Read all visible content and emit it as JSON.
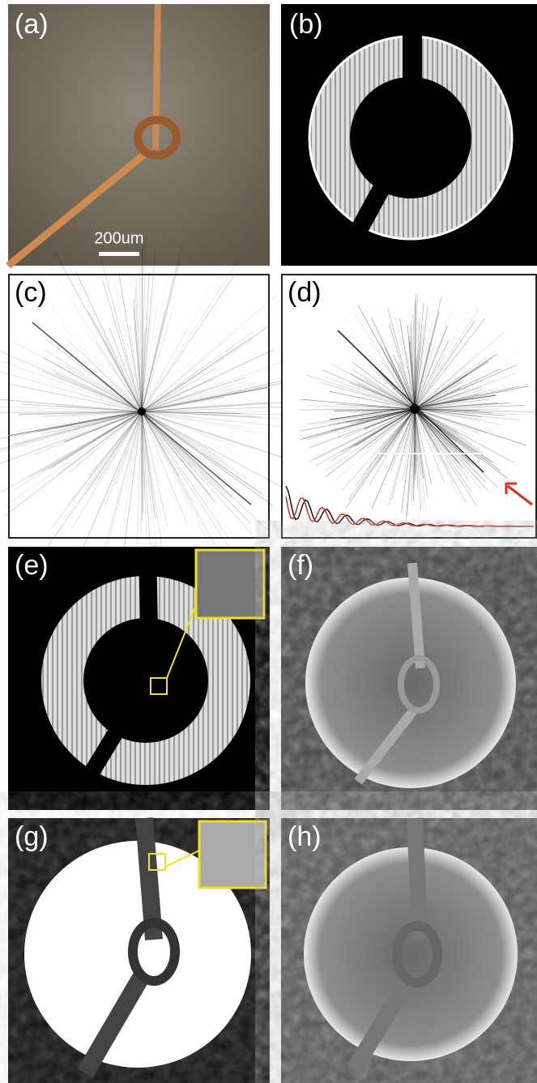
{
  "panels": [
    {
      "label": "(a)"
    },
    {
      "label": "(b)"
    },
    {
      "label": "(c)"
    },
    {
      "label": "(d)"
    },
    {
      "label": "(e)"
    },
    {
      "label": "(f)"
    },
    {
      "label": "(g)"
    },
    {
      "label": "(h)"
    }
  ],
  "scale_bar": "200um"
}
